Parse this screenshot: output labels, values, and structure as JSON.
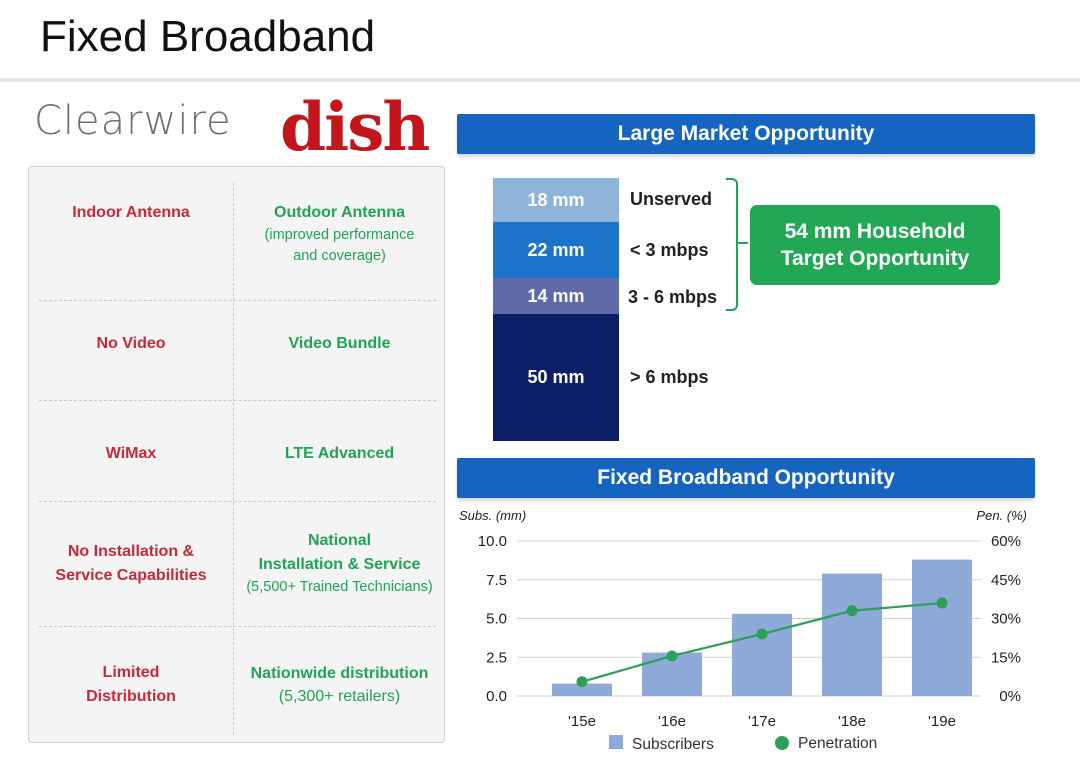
{
  "page": {
    "title": "Fixed Broadband"
  },
  "logos": {
    "clearwire": "Clearwire",
    "dish": "dish"
  },
  "comparison": {
    "rows": [
      {
        "left": [
          "Indoor Antenna"
        ],
        "right": [
          "Outdoor Antenna"
        ],
        "right_sub": [
          "(improved performance",
          "and coverage)"
        ]
      },
      {
        "left": [
          "No Video"
        ],
        "right": [
          "Video Bundle"
        ],
        "right_sub": []
      },
      {
        "left": [
          "WiMax"
        ],
        "right": [
          "LTE Advanced"
        ],
        "right_sub": []
      },
      {
        "left": [
          "No Installation &",
          "Service Capabilities"
        ],
        "right": [
          "National",
          "Installation & Service"
        ],
        "right_sub": [
          "(5,500+ Trained Technicians)"
        ]
      },
      {
        "left": [
          "Limited",
          "Distribution"
        ],
        "right": [
          "Nationwide distribution"
        ],
        "right_sub": [
          "(5,300+ retailers)"
        ]
      }
    ]
  },
  "market": {
    "header": "Large Market Opportunity",
    "segments": [
      {
        "value": "18 mm",
        "label": "Unserved",
        "color": "#8eb4dc"
      },
      {
        "value": "22 mm",
        "label": "< 3 mbps",
        "color": "#1b74c8"
      },
      {
        "value": "14 mm",
        "label": "3 - 6 mbps",
        "color": "#5f6aa8"
      },
      {
        "value": "50 mm",
        "label": "> 6 mbps",
        "color": "#0c1f66"
      }
    ],
    "target_line1": "54 mm Household",
    "target_line2": "Target Opportunity"
  },
  "chart_header": "Fixed Broadband Opportunity",
  "chart_data": {
    "type": "bar",
    "categories": [
      "'15e",
      "'16e",
      "'17e",
      "'18e",
      "'19e"
    ],
    "series": [
      {
        "name": "Subscribers",
        "type": "bar",
        "axis": "left",
        "values": [
          0.8,
          2.8,
          5.3,
          7.9,
          8.8
        ],
        "color": "#8eaad8"
      },
      {
        "name": "Penetration",
        "type": "line",
        "axis": "right",
        "values": [
          5.5,
          15.5,
          24,
          33,
          36
        ],
        "color": "#2e9e5b"
      }
    ],
    "ylabel_left": "Subs. (mm)",
    "ylabel_right": "Pen. (%)",
    "ylim_left": [
      0,
      10
    ],
    "ylim_right": [
      0,
      60
    ],
    "yticks_left": [
      "0.0",
      "2.5",
      "5.0",
      "7.5",
      "10.0"
    ],
    "yticks_right": [
      "0%",
      "15%",
      "30%",
      "45%",
      "60%"
    ],
    "grid": true,
    "legend_position": "bottom"
  }
}
